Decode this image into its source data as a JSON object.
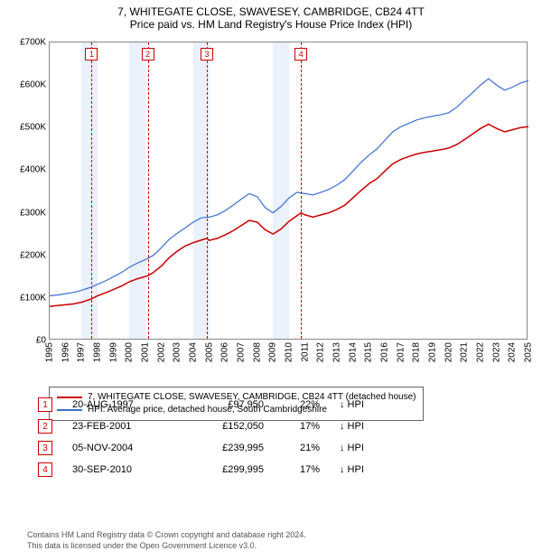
{
  "title": {
    "line1": "7, WHITEGATE CLOSE, SWAVESEY, CAMBRIDGE, CB24 4TT",
    "line2": "Price paid vs. HM Land Registry's House Price Index (HPI)"
  },
  "chart": {
    "type": "line",
    "background_color": "#ffffff",
    "plot_border_color": "#888888",
    "shade_color": "#eaf1fb",
    "x": {
      "min": 1995,
      "max": 2025,
      "ticks": [
        1995,
        1996,
        1997,
        1998,
        1999,
        2000,
        2001,
        2002,
        2003,
        2004,
        2005,
        2006,
        2007,
        2008,
        2009,
        2010,
        2011,
        2012,
        2013,
        2014,
        2015,
        2016,
        2017,
        2018,
        2019,
        2020,
        2021,
        2022,
        2023,
        2024,
        2025
      ],
      "label_fontsize": 10,
      "rotation": -90
    },
    "y": {
      "min": 0,
      "max": 700000,
      "ticks": [
        0,
        100000,
        200000,
        300000,
        400000,
        500000,
        600000,
        700000
      ],
      "tick_labels": [
        "£0",
        "£100K",
        "£200K",
        "£300K",
        "£400K",
        "£500K",
        "£600K",
        "£700K"
      ],
      "label_fontsize": 10
    },
    "shaded_year_bands": [
      1997,
      1998,
      2000,
      2001,
      2004,
      2005,
      2009,
      2010
    ],
    "series": [
      {
        "id": "price_paid",
        "label": "7, WHITEGATE CLOSE, SWAVESEY, CAMBRIDGE, CB24 4TT (detached house)",
        "color": "#cc0000",
        "line_width": 1.5,
        "data": [
          [
            1995.0,
            80000
          ],
          [
            1995.5,
            82000
          ],
          [
            1996.0,
            84000
          ],
          [
            1996.5,
            86000
          ],
          [
            1997.0,
            90000
          ],
          [
            1997.63,
            97950
          ],
          [
            1998.0,
            105000
          ],
          [
            1998.5,
            112000
          ],
          [
            1999.0,
            120000
          ],
          [
            1999.5,
            128000
          ],
          [
            2000.0,
            138000
          ],
          [
            2000.5,
            145000
          ],
          [
            2001.15,
            152050
          ],
          [
            2001.5,
            160000
          ],
          [
            2002.0,
            175000
          ],
          [
            2002.5,
            195000
          ],
          [
            2003.0,
            210000
          ],
          [
            2003.5,
            222000
          ],
          [
            2004.0,
            230000
          ],
          [
            2004.85,
            239995
          ],
          [
            2005.0,
            235000
          ],
          [
            2005.5,
            240000
          ],
          [
            2006.0,
            248000
          ],
          [
            2006.5,
            258000
          ],
          [
            2007.0,
            270000
          ],
          [
            2007.5,
            282000
          ],
          [
            2008.0,
            278000
          ],
          [
            2008.5,
            260000
          ],
          [
            2009.0,
            250000
          ],
          [
            2009.5,
            262000
          ],
          [
            2010.0,
            280000
          ],
          [
            2010.75,
            299995
          ],
          [
            2011.0,
            295000
          ],
          [
            2011.5,
            290000
          ],
          [
            2012.0,
            295000
          ],
          [
            2012.5,
            300000
          ],
          [
            2013.0,
            308000
          ],
          [
            2013.5,
            318000
          ],
          [
            2014.0,
            335000
          ],
          [
            2014.5,
            352000
          ],
          [
            2015.0,
            368000
          ],
          [
            2015.5,
            380000
          ],
          [
            2016.0,
            398000
          ],
          [
            2016.5,
            415000
          ],
          [
            2017.0,
            425000
          ],
          [
            2017.5,
            432000
          ],
          [
            2018.0,
            438000
          ],
          [
            2018.5,
            442000
          ],
          [
            2019.0,
            445000
          ],
          [
            2019.5,
            448000
          ],
          [
            2020.0,
            452000
          ],
          [
            2020.5,
            460000
          ],
          [
            2021.0,
            472000
          ],
          [
            2021.5,
            485000
          ],
          [
            2022.0,
            498000
          ],
          [
            2022.5,
            508000
          ],
          [
            2023.0,
            498000
          ],
          [
            2023.5,
            490000
          ],
          [
            2024.0,
            495000
          ],
          [
            2024.5,
            500000
          ],
          [
            2025.0,
            502000
          ]
        ]
      },
      {
        "id": "hpi",
        "label": "HPI: Average price, detached house, South Cambridgeshire",
        "color": "#3b6fd6",
        "line_width": 1.2,
        "data": [
          [
            1995.0,
            105000
          ],
          [
            1995.5,
            107000
          ],
          [
            1996.0,
            110000
          ],
          [
            1996.5,
            113000
          ],
          [
            1997.0,
            118000
          ],
          [
            1997.5,
            124000
          ],
          [
            1998.0,
            132000
          ],
          [
            1998.5,
            140000
          ],
          [
            1999.0,
            150000
          ],
          [
            1999.5,
            160000
          ],
          [
            2000.0,
            172000
          ],
          [
            2000.5,
            182000
          ],
          [
            2001.0,
            190000
          ],
          [
            2001.5,
            200000
          ],
          [
            2002.0,
            218000
          ],
          [
            2002.5,
            238000
          ],
          [
            2003.0,
            252000
          ],
          [
            2003.5,
            265000
          ],
          [
            2004.0,
            278000
          ],
          [
            2004.5,
            288000
          ],
          [
            2005.0,
            290000
          ],
          [
            2005.5,
            295000
          ],
          [
            2006.0,
            305000
          ],
          [
            2006.5,
            318000
          ],
          [
            2007.0,
            332000
          ],
          [
            2007.5,
            345000
          ],
          [
            2008.0,
            338000
          ],
          [
            2008.5,
            312000
          ],
          [
            2009.0,
            300000
          ],
          [
            2009.5,
            315000
          ],
          [
            2010.0,
            335000
          ],
          [
            2010.5,
            348000
          ],
          [
            2011.0,
            345000
          ],
          [
            2011.5,
            342000
          ],
          [
            2012.0,
            348000
          ],
          [
            2012.5,
            355000
          ],
          [
            2013.0,
            365000
          ],
          [
            2013.5,
            378000
          ],
          [
            2014.0,
            398000
          ],
          [
            2014.5,
            418000
          ],
          [
            2015.0,
            435000
          ],
          [
            2015.5,
            450000
          ],
          [
            2016.0,
            470000
          ],
          [
            2016.5,
            490000
          ],
          [
            2017.0,
            502000
          ],
          [
            2017.5,
            510000
          ],
          [
            2018.0,
            518000
          ],
          [
            2018.5,
            523000
          ],
          [
            2019.0,
            527000
          ],
          [
            2019.5,
            530000
          ],
          [
            2020.0,
            535000
          ],
          [
            2020.5,
            548000
          ],
          [
            2021.0,
            565000
          ],
          [
            2021.5,
            582000
          ],
          [
            2022.0,
            600000
          ],
          [
            2022.5,
            615000
          ],
          [
            2023.0,
            600000
          ],
          [
            2023.5,
            588000
          ],
          [
            2024.0,
            595000
          ],
          [
            2024.5,
            605000
          ],
          [
            2025.0,
            610000
          ]
        ]
      }
    ],
    "events": [
      {
        "n": "1",
        "year": 1997.63
      },
      {
        "n": "2",
        "year": 2001.15
      },
      {
        "n": "3",
        "year": 2004.85
      },
      {
        "n": "4",
        "year": 2010.75
      }
    ]
  },
  "legend": {
    "items": [
      {
        "color": "#cc0000",
        "label": "7, WHITEGATE CLOSE, SWAVESEY, CAMBRIDGE, CB24 4TT (detached house)"
      },
      {
        "color": "#3b6fd6",
        "label": "HPI: Average price, detached house, South Cambridgeshire"
      }
    ]
  },
  "sales": [
    {
      "n": "1",
      "date": "20-AUG-1997",
      "price": "£97,950",
      "pct": "22%",
      "arrow": "↓",
      "ref": "HPI"
    },
    {
      "n": "2",
      "date": "23-FEB-2001",
      "price": "£152,050",
      "pct": "17%",
      "arrow": "↓",
      "ref": "HPI"
    },
    {
      "n": "3",
      "date": "05-NOV-2004",
      "price": "£239,995",
      "pct": "21%",
      "arrow": "↓",
      "ref": "HPI"
    },
    {
      "n": "4",
      "date": "30-SEP-2010",
      "price": "£299,995",
      "pct": "17%",
      "arrow": "↓",
      "ref": "HPI"
    }
  ],
  "footer": {
    "line1": "Contains HM Land Registry data © Crown copyright and database right 2024.",
    "line2": "This data is licensed under the Open Government Licence v3.0."
  }
}
